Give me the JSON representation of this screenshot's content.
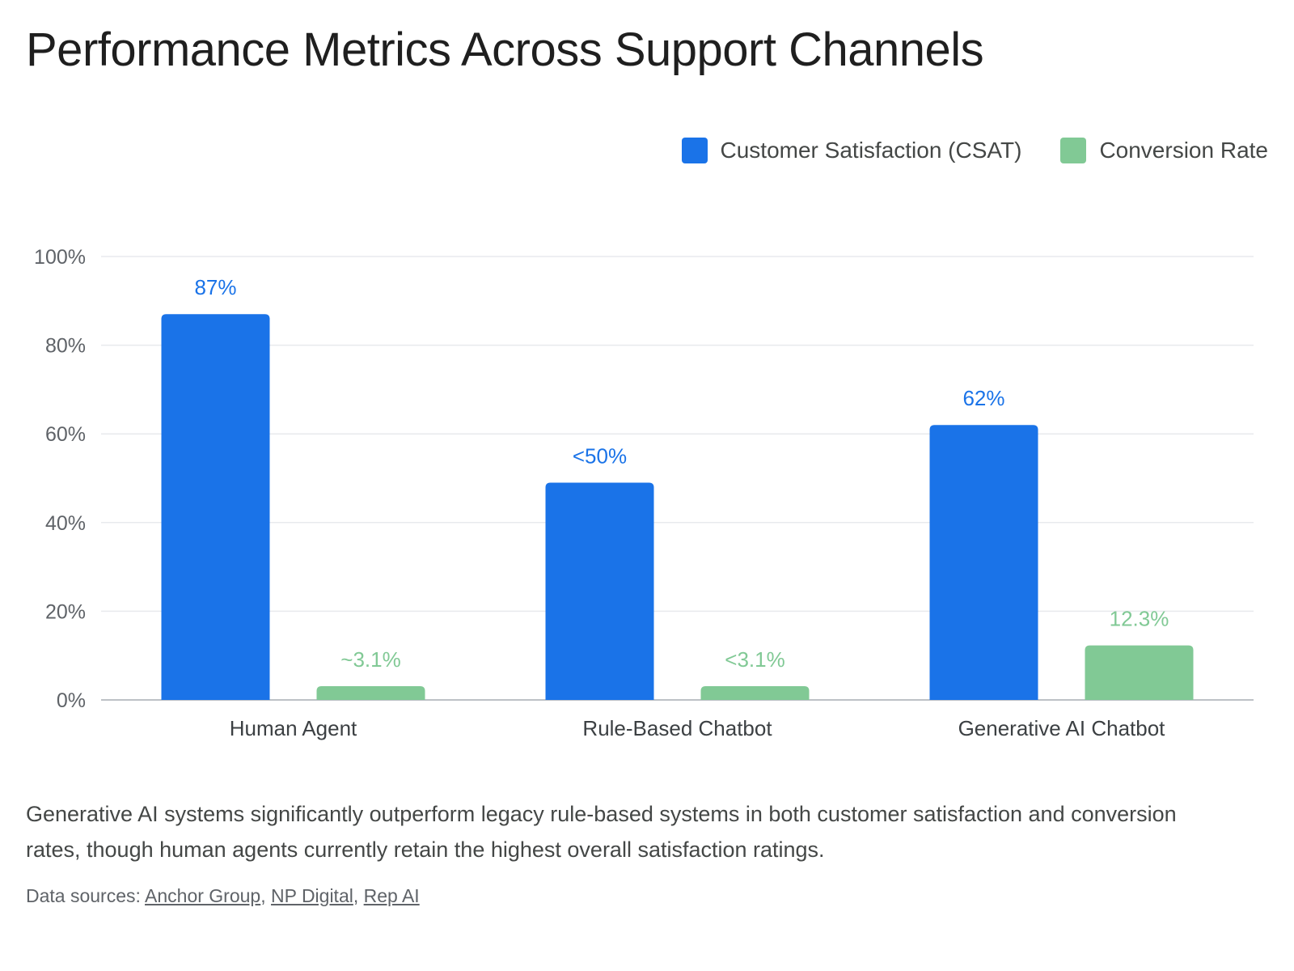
{
  "title": "Performance Metrics Across Support Channels",
  "caption": "Generative AI systems significantly outperform legacy rule-based systems in both customer satisfaction and conversion rates, though human agents currently retain the highest overall satisfaction ratings.",
  "sources": {
    "prefix": "Data sources: ",
    "links": [
      "Anchor Group",
      "NP Digital",
      "Rep AI"
    ],
    "separator": ", "
  },
  "colors": {
    "csat": "#1a73e8",
    "conversion": "#81c995",
    "grid": "#e8eaed",
    "axis": "#bdc1c6",
    "tick_text": "#5f6368"
  },
  "chart_data": {
    "type": "bar",
    "categories": [
      "Human Agent",
      "Rule-Based Chatbot",
      "Generative AI Chatbot"
    ],
    "series": [
      {
        "name": "Customer Satisfaction (CSAT)",
        "color": "#1a73e8",
        "values": [
          87,
          49,
          62
        ],
        "labels": [
          "87%",
          "<50%",
          "62%"
        ]
      },
      {
        "name": "Conversion Rate",
        "color": "#81c995",
        "values": [
          3.1,
          3.1,
          12.3
        ],
        "labels": [
          "~3.1%",
          "<3.1%",
          "12.3%"
        ]
      }
    ],
    "ylim": [
      0,
      100
    ],
    "yticks": [
      0,
      20,
      40,
      60,
      80,
      100
    ],
    "ytick_labels": [
      "0%",
      "20%",
      "40%",
      "60%",
      "80%",
      "100%"
    ],
    "grid": true,
    "legend": "top-right"
  }
}
